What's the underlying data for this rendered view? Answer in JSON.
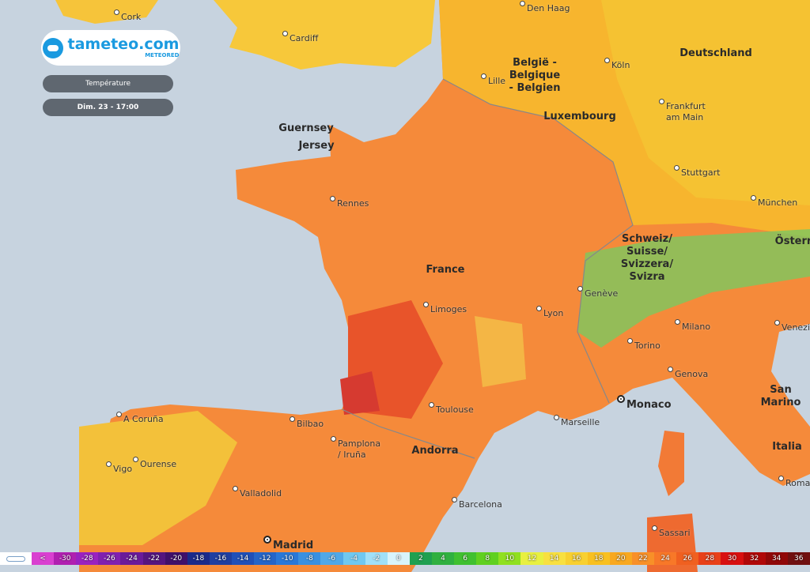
{
  "brand": {
    "name": "tameteo.com",
    "sub": "METEORED"
  },
  "controls": {
    "layer": "Température",
    "time": "Dim. 23 - 17:00"
  },
  "countries": [
    "België -\nBelgique\n- Belgien",
    "Deutschland",
    "Luxembourg",
    "Guernsey",
    "Jersey",
    "France",
    "Schweiz/\nSuisse/\nSvizzera/\nSvizra",
    "Andorra",
    "Italia",
    "San Marino",
    "Österr"
  ],
  "cities": [
    "Cork",
    "Den Haag",
    "Cardiff",
    "Köln",
    "Lille",
    "Frankfurt\nam Main",
    "Stuttgart",
    "München",
    "Rennes",
    "Genève",
    "Limoges",
    "Lyon",
    "Milano",
    "Venezia",
    "Torino",
    "Genova",
    "Toulouse",
    "Marseille",
    "Bilbao",
    "A Coruña",
    "Pamplona\n/ Iruña",
    "Vigo",
    "Ourense",
    "Valladolid",
    "Barcelona",
    "Roma",
    "Sassari"
  ],
  "capitals": [
    "Monaco",
    "Madrid"
  ],
  "legend": {
    "labels": [
      "<",
      "-30",
      "-28",
      "-26",
      "-24",
      "-22",
      "-20",
      "-18",
      "-16",
      "-14",
      "-12",
      "-10",
      "-8",
      "-6",
      "-4",
      "-2",
      "0",
      "2",
      "4",
      "6",
      "8",
      "10",
      "12",
      "14",
      "16",
      "18",
      "20",
      "22",
      "24",
      "26",
      "28",
      "30",
      "32",
      "34",
      "36"
    ],
    "colors": [
      "#d940d0",
      "#b020b0",
      "#9a22c0",
      "#8020b0",
      "#6a1a9a",
      "#55157f",
      "#40106a",
      "#1a2a8a",
      "#1f3fa0",
      "#2050b8",
      "#2565c8",
      "#2a78d8",
      "#3a90e0",
      "#50a8e8",
      "#70c8f0",
      "#a0e0f8",
      "#d8f4fc",
      "#20a050",
      "#30b040",
      "#40c030",
      "#60d020",
      "#90e020",
      "#e8f040",
      "#f8e040",
      "#f8d030",
      "#f8c020",
      "#f8a820",
      "#f89028",
      "#f87828",
      "#f06020",
      "#e84018",
      "#d81010",
      "#b00808",
      "#900808",
      "#701010"
    ]
  }
}
